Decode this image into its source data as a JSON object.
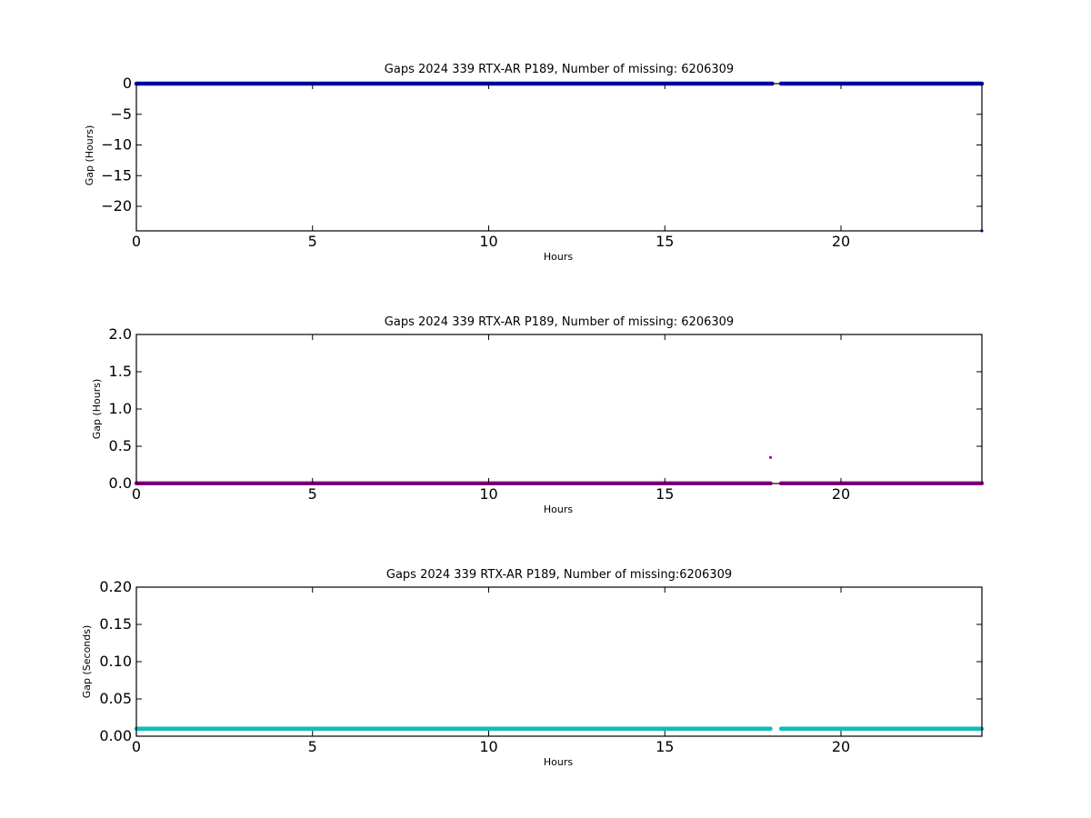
{
  "colors": {
    "background": "#ffffff",
    "axes": "#000000"
  },
  "chart_data": [
    {
      "type": "scatter",
      "title": "Gaps 2024 339 RTX-AR  P189, Number of missing: 6206309",
      "xlabel": "Hours",
      "ylabel": "Gap (Hours)",
      "xlim": [
        0,
        24
      ],
      "ylim": [
        -24,
        0
      ],
      "xticks": [
        0,
        5,
        10,
        15,
        20
      ],
      "yticks": [
        0,
        -5,
        -10,
        -15,
        -20
      ],
      "tick_labels": {
        "x": [
          "0",
          "5",
          "10",
          "15",
          "20"
        ],
        "y": [
          "0",
          "−5",
          "−10",
          "−15",
          "−20"
        ]
      },
      "grid": false,
      "series": [
        {
          "color": "#0000cc",
          "marker": "dot",
          "segments": [
            [
              0,
              18.05,
              0
            ],
            [
              18.3,
              24,
              0
            ]
          ],
          "points": [
            [
              24,
              -23.99
            ]
          ]
        }
      ]
    },
    {
      "type": "scatter",
      "title": "Gaps 2024 339 RTX-AR  P189, Number of missing: 6206309",
      "xlabel": "Hours",
      "ylabel": "Gap (Hours)",
      "xlim": [
        0,
        24
      ],
      "ylim": [
        0,
        2.0
      ],
      "xticks": [
        0,
        5,
        10,
        15,
        20
      ],
      "yticks": [
        0.0,
        0.5,
        1.0,
        1.5,
        2.0
      ],
      "tick_labels": {
        "x": [
          "0",
          "5",
          "10",
          "15",
          "20"
        ],
        "y": [
          "0.0",
          "0.5",
          "1.0",
          "1.5",
          "2.0"
        ]
      },
      "grid": false,
      "series": [
        {
          "color": "#aa00aa",
          "marker": "dot",
          "segments": [
            [
              0,
              18.0,
              0.003
            ],
            [
              18.3,
              24,
              0.003
            ]
          ],
          "points": [
            [
              18.0,
              0.35
            ]
          ]
        }
      ]
    },
    {
      "type": "scatter",
      "title": "Gaps 2024 339 RTX-AR  P189, Number of missing:6206309",
      "xlabel": "Hours",
      "ylabel": "Gap (Seconds)",
      "xlim": [
        0,
        24
      ],
      "ylim": [
        0,
        0.2
      ],
      "xticks": [
        0,
        5,
        10,
        15,
        20
      ],
      "yticks": [
        0.0,
        0.05,
        0.1,
        0.15,
        0.2
      ],
      "tick_labels": {
        "x": [
          "0",
          "5",
          "10",
          "15",
          "20"
        ],
        "y": [
          "0.00",
          "0.05",
          "0.10",
          "0.15",
          "0.20"
        ]
      },
      "grid": false,
      "series": [
        {
          "color": "#11bbbb",
          "marker": "dot",
          "segments": [
            [
              0,
              18.0,
              0.01
            ],
            [
              18.3,
              24,
              0.01
            ]
          ],
          "points": []
        }
      ]
    }
  ]
}
